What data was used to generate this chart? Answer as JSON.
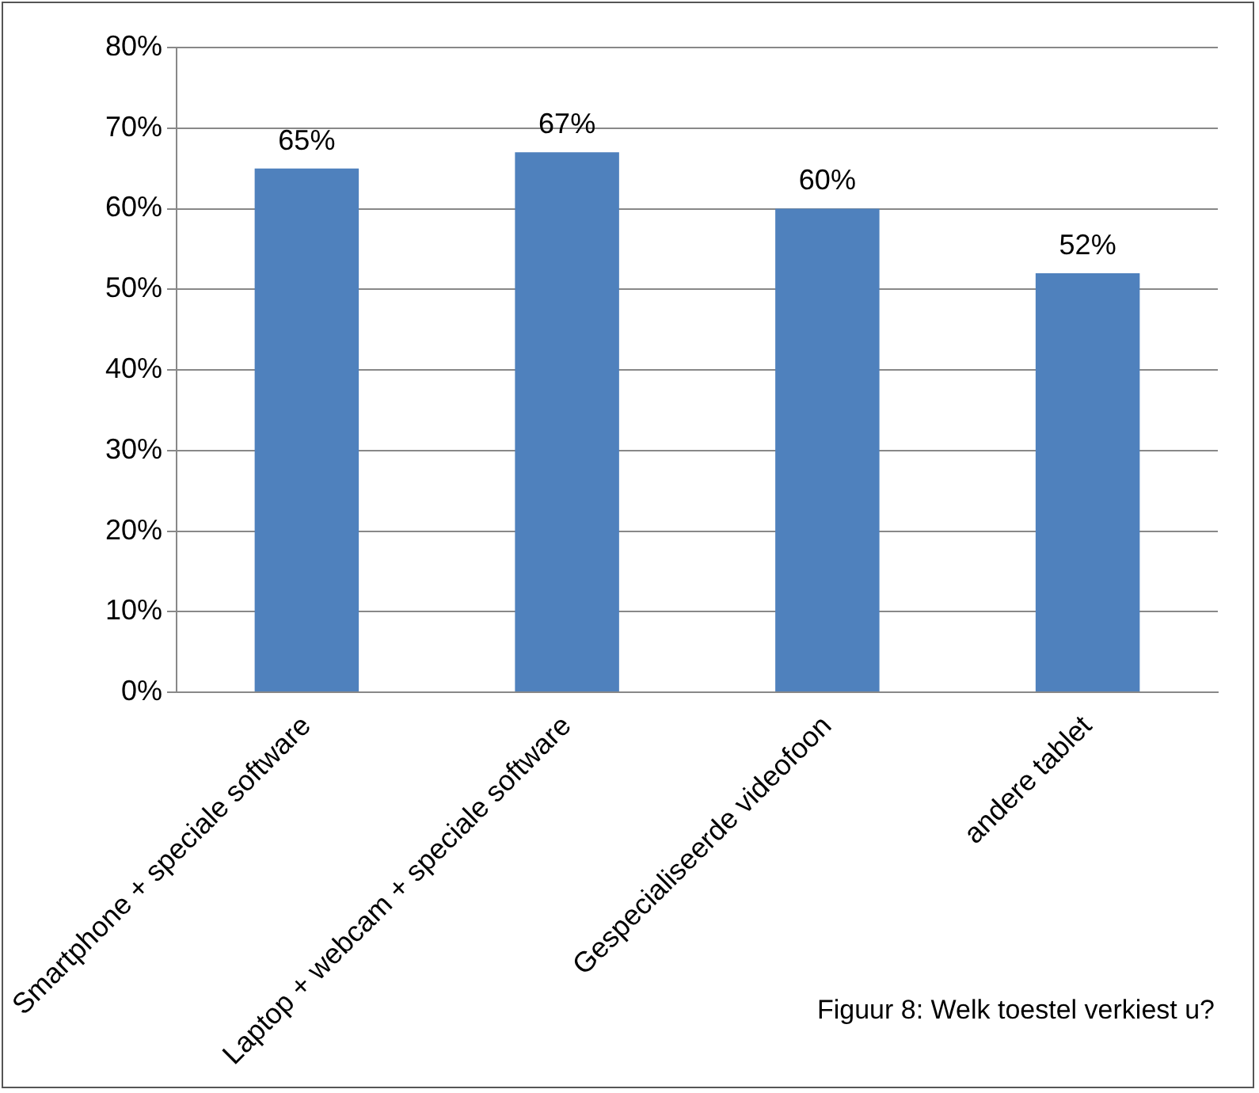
{
  "chart_data": {
    "type": "bar",
    "categories": [
      "Smartphone + speciale software",
      "Laptop + webcam + speciale software",
      "Gespecialiseerde videofoon",
      "andere tablet"
    ],
    "values": [
      65,
      67,
      60,
      52
    ],
    "color": "#4f81bd",
    "value_labels": [
      "65%",
      "67%",
      "60%",
      "52%"
    ],
    "ylim": [
      0,
      80
    ],
    "yticks": [
      {
        "value": 0,
        "label": "0%"
      },
      {
        "value": 10,
        "label": "10%"
      },
      {
        "value": 20,
        "label": "20%"
      },
      {
        "value": 30,
        "label": "30%"
      },
      {
        "value": 40,
        "label": "40%"
      },
      {
        "value": 50,
        "label": "50%"
      },
      {
        "value": 60,
        "label": "60%"
      },
      {
        "value": 70,
        "label": "70%"
      },
      {
        "value": 80,
        "label": "80%"
      }
    ],
    "grid": "y",
    "legend": false,
    "annotations": [
      "Figuur 8: Welk toestel verkiest u?"
    ]
  }
}
